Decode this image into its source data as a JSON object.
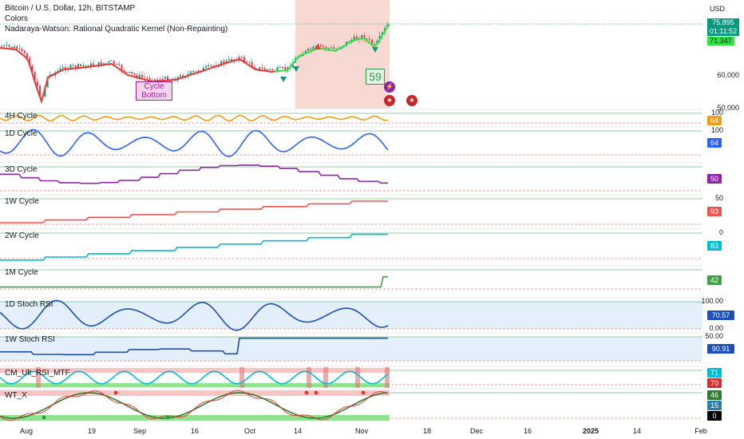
{
  "header": {
    "symbol_line": "Bitcoin / U.S. Dollar, 12h, BITSTAMP",
    "indicator_1": "Colors",
    "indicator_2": "Nadaraya-Watson: Rational Quadratic Kernel (Non-Repainting)"
  },
  "price_axis": {
    "currency": "USD",
    "levels": [
      "60,000",
      "50,000"
    ],
    "last_price": "75,895",
    "countdown": "01:11:52",
    "nw_value": "71,347"
  },
  "annotations": {
    "cycle_bottom": "Cycle\nBottom",
    "count_badge": "59"
  },
  "panes": [
    {
      "name": "4H Cycle",
      "value": "64",
      "color": "#f39c12",
      "axis": [
        "100"
      ]
    },
    {
      "name": "1D Cycle",
      "value": "64",
      "color": "#2962ff",
      "axis": [
        "100"
      ]
    },
    {
      "name": "3D Cycle",
      "value": "50",
      "color": "#8e24aa",
      "axis": []
    },
    {
      "name": "1W Cycle",
      "value": "93",
      "color": "#ef5350",
      "axis": [
        "50"
      ]
    },
    {
      "name": "2W Cycle",
      "value": "83",
      "color": "#00bcd4",
      "axis": [
        "0"
      ]
    },
    {
      "name": "1M Cycle",
      "value": "42",
      "color": "#43a047",
      "axis": []
    },
    {
      "name": "1D Stoch RSI",
      "value": "70.57",
      "color": "#1e4fb8",
      "axis": [
        "100.00",
        "0.00"
      ]
    },
    {
      "name": "1W Stoch RSI",
      "value": "90.91",
      "color": "#1e4fb8",
      "axis": [
        "50.00"
      ]
    },
    {
      "name": "CM_Ult_RSI_MTF",
      "value": "71",
      "value2": "70",
      "color": "#00bcd4",
      "color2": "#d32f2f",
      "axis": []
    },
    {
      "name": "WT_X",
      "value": "46",
      "value2": "15",
      "value3": "0",
      "color": "#2e7d32",
      "color2": "#2a7fa8",
      "color3": "#000000",
      "axis": []
    }
  ],
  "time_axis": [
    "Aug",
    "19",
    "Sep",
    "16",
    "Oct",
    "14",
    "Nov",
    "18",
    "Dec",
    "16",
    "2025",
    "14",
    "Feb"
  ]
}
